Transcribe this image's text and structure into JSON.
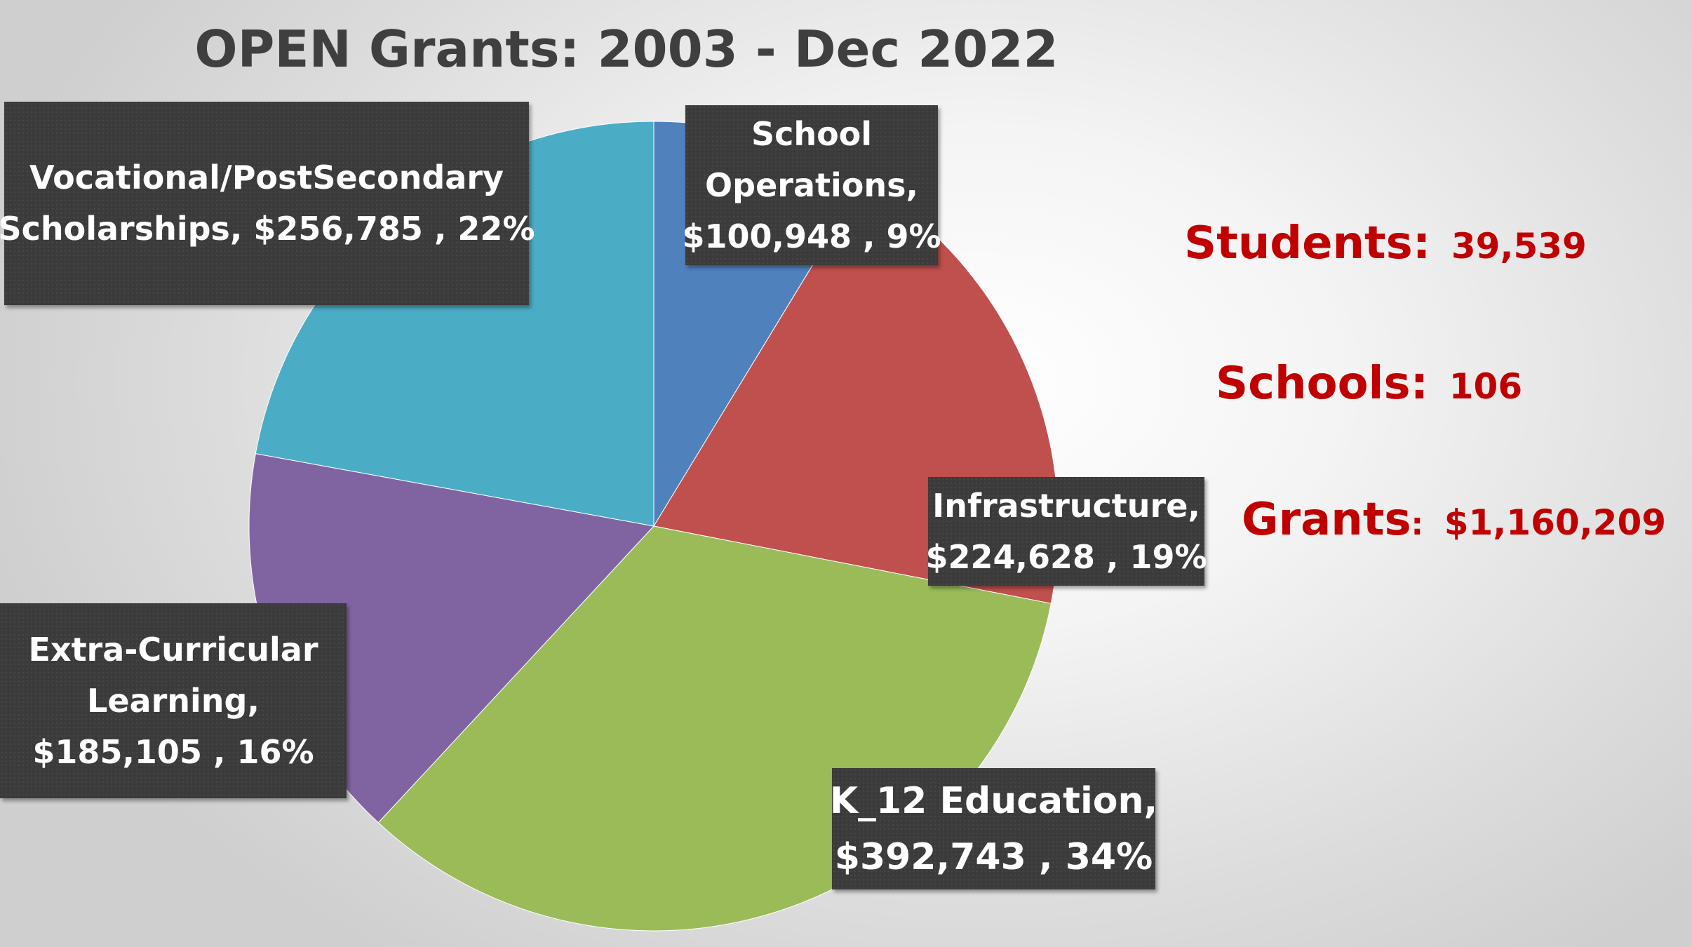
{
  "chart_data": {
    "type": "pie",
    "title": "OPEN Grants: 2003 - Dec 2022",
    "slices": [
      {
        "name": "School Operations",
        "value": 100948,
        "value_label": "$100,948",
        "percent": 9,
        "percent_label": "9%",
        "color": "#4f81bd",
        "label_lines": [
          "School",
          "Operations,",
          "$100,948 , 9%"
        ]
      },
      {
        "name": "Infrastructure",
        "value": 224628,
        "value_label": "$224,628",
        "percent": 19,
        "percent_label": "19%",
        "color": "#c0504d",
        "label_lines": [
          "Infrastructure,",
          "$224,628 , 19%"
        ]
      },
      {
        "name": "K_12 Education",
        "value": 392743,
        "value_label": "$392,743",
        "percent": 34,
        "percent_label": "34%",
        "color": "#9bbb59",
        "label_lines": [
          "K_12 Education,",
          "$392,743 , 34%"
        ]
      },
      {
        "name": "Extra-Curricular Learning",
        "value": 185105,
        "value_label": "$185,105",
        "percent": 16,
        "percent_label": "16%",
        "color": "#8064a2",
        "label_lines": [
          "Extra-Curricular",
          "Learning,",
          "$185,105 , 16%"
        ]
      },
      {
        "name": "Vocational/PostSecondary Scholarships",
        "value": 256785,
        "value_label": "$256,785",
        "percent": 22,
        "percent_label": "22%",
        "color": "#4bacc6",
        "label_lines": [
          "Vocational/PostSecondary",
          "Scholarships,  $256,785 , 22%"
        ]
      }
    ]
  },
  "stats": {
    "students": {
      "label": "Students:",
      "value": "39,539"
    },
    "schools": {
      "label": "Schools:",
      "value": "106"
    },
    "grants": {
      "label": "Grants",
      "separator": ":",
      "value": "$1,160,209"
    }
  },
  "colors": {
    "title": "#3f3f3f",
    "stats_text": "#c00000",
    "label_box": "#3b3b3b"
  }
}
